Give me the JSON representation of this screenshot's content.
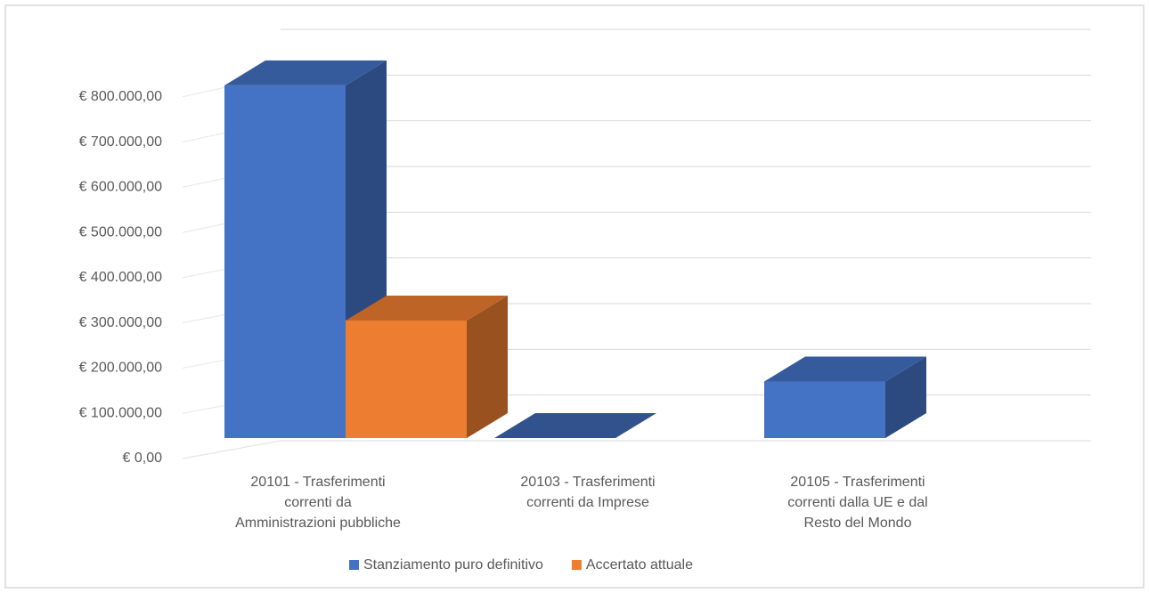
{
  "chart_data": {
    "type": "bar3d",
    "categories": [
      "20101 - Trasferimenti correnti da Amministrazioni pubbliche",
      "20103 - Trasferimenti correnti da Imprese",
      "20105 - Trasferimenti correnti dalla UE e dal Resto del Mondo"
    ],
    "series": [
      {
        "name": "Stanziamento puro definitivo",
        "color": "#4472c4",
        "values": [
          780000,
          0,
          125000
        ]
      },
      {
        "name": "Accertato attuale",
        "color": "#ed7d31",
        "values": [
          260000,
          null,
          null
        ]
      }
    ],
    "ylim": [
      0,
      900000
    ],
    "yticks": [
      {
        "value": 0,
        "label": "€ 0,00"
      },
      {
        "value": 100000,
        "label": "€ 100.000,00"
      },
      {
        "value": 200000,
        "label": "€ 200.000,00"
      },
      {
        "value": 300000,
        "label": "€ 300.000,00"
      },
      {
        "value": 400000,
        "label": "€ 400.000,00"
      },
      {
        "value": 500000,
        "label": "€ 500.000,00"
      },
      {
        "value": 600000,
        "label": "€ 600.000,00"
      },
      {
        "value": 700000,
        "label": "€ 700.000,00"
      },
      {
        "value": 800000,
        "label": "€ 800.000,00"
      }
    ],
    "grid": true,
    "legend": "bottom"
  }
}
